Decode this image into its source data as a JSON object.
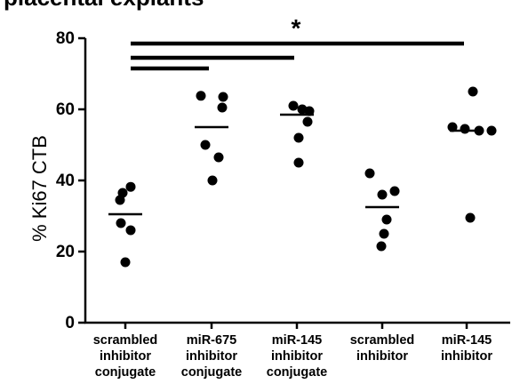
{
  "header": {
    "title_fragment": "placental explants"
  },
  "chart_data": {
    "type": "scatter",
    "ylabel": "% Ki67 CTB",
    "ylim": [
      0,
      80
    ],
    "yticks": [
      0,
      20,
      40,
      60,
      80
    ],
    "categories": [
      "scrambled inhibitor conjugate",
      "miR-675 inhibitor conjugate",
      "miR-145 inhibitor conjugate",
      "scrambled inhibitor",
      "miR-145 inhibitor"
    ],
    "category_lines": [
      [
        "scrambled",
        "inhibitor",
        "conjugate"
      ],
      [
        "miR-675",
        "inhibitor",
        "conjugate"
      ],
      [
        "miR-145",
        "inhibitor",
        "conjugate"
      ],
      [
        "scrambled",
        "inhibitor"
      ],
      [
        "miR-145",
        "inhibitor"
      ]
    ],
    "groups": [
      {
        "points": [
          38.2,
          36.5,
          34.5,
          28.0,
          26.0,
          17.0
        ],
        "mean": 30.5
      },
      {
        "points": [
          63.8,
          63.5,
          60.5,
          50.0,
          46.5,
          40.0
        ],
        "mean": 55.0
      },
      {
        "points": [
          61.0,
          60.0,
          59.5,
          56.5,
          52.0,
          45.0
        ],
        "mean": 58.5
      },
      {
        "points": [
          42.0,
          37.0,
          36.0,
          29.0,
          25.0,
          21.5
        ],
        "mean": 32.5
      },
      {
        "points": [
          65.0,
          55.0,
          54.5,
          54.0,
          54.0,
          29.5
        ],
        "mean": 54.0
      }
    ],
    "significance_bars": [
      {
        "from": 0,
        "to": 1,
        "y": 71.5
      },
      {
        "from": 0,
        "to": 2,
        "y": 74.5
      },
      {
        "from": 0,
        "to": 4,
        "y": 78.5
      }
    ],
    "significance_label": "*",
    "grid": false,
    "legend": "none"
  }
}
